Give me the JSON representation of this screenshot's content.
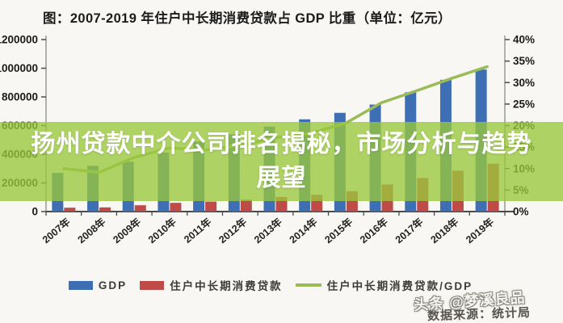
{
  "title": "图：2007-2019 年住户中长期消费贷款占 GDP 比重（单位：亿元）",
  "overlay": {
    "line1": "扬州贷款中介公司排名揭秘，市场分析与趋势",
    "line2": "展望",
    "bg_color": "#9AC83C",
    "bg_opacity": 0.78,
    "text_color": "#FFFFFF"
  },
  "watermark": "头条 @梦溪良品",
  "source": "数据来源：统计局",
  "legend": [
    {
      "label": "GDP",
      "type": "bar",
      "color": "#3E6FB5"
    },
    {
      "label": "住户中长期消费贷款",
      "type": "bar",
      "color": "#BE4B48"
    },
    {
      "label": "住户中长期消费贷款/GDP",
      "type": "line",
      "color": "#9BBB59"
    }
  ],
  "chart_data": {
    "type": "bar",
    "subtype": "bar+line combo, dual axis",
    "title": "图：2007-2019 年住户中长期消费贷款占 GDP 比重（单位：亿元）",
    "categories": [
      "2007年",
      "2008年",
      "2009年",
      "2010年",
      "2011年",
      "2012年",
      "2013年",
      "2014年",
      "2015年",
      "2016年",
      "2017年",
      "2018年",
      "2019年"
    ],
    "series": [
      {
        "name": "GDP",
        "type": "bar",
        "axis": "left",
        "color": "#3E6FB5",
        "values": [
          270092,
          319245,
          348518,
          412119,
          487940,
          538580,
          592963,
          643563,
          688858,
          746395,
          832036,
          919281,
          990865
        ]
      },
      {
        "name": "住户中长期消费贷款",
        "type": "bar",
        "axis": "left",
        "color": "#BE4B48",
        "values": [
          27000,
          29000,
          44000,
          61000,
          70000,
          83000,
          102000,
          117000,
          142000,
          189000,
          234000,
          285000,
          334000
        ]
      },
      {
        "name": "住户中长期消费贷款/GDP",
        "type": "line",
        "axis": "right",
        "color": "#9BBB59",
        "values": [
          10.0,
          9.1,
          12.6,
          14.8,
          14.3,
          15.4,
          17.2,
          18.2,
          20.6,
          25.3,
          28.1,
          31.0,
          33.7
        ]
      }
    ],
    "left_axis": {
      "min": 0,
      "max": 1200000,
      "step": 200000,
      "tick_labels": [
        "0",
        "200000",
        "400000",
        "600000",
        "800000",
        "1000000",
        "1200000"
      ]
    },
    "right_axis": {
      "min": 0,
      "max": 40,
      "step": 5,
      "tick_labels": [
        "0%",
        "5%",
        "10%",
        "15%",
        "20%",
        "25%",
        "30%",
        "35%",
        "40%"
      ]
    },
    "grid": false,
    "legend_position": "bottom",
    "axis_color": "#8a8a8a",
    "label_color": "#1a1a1a"
  }
}
